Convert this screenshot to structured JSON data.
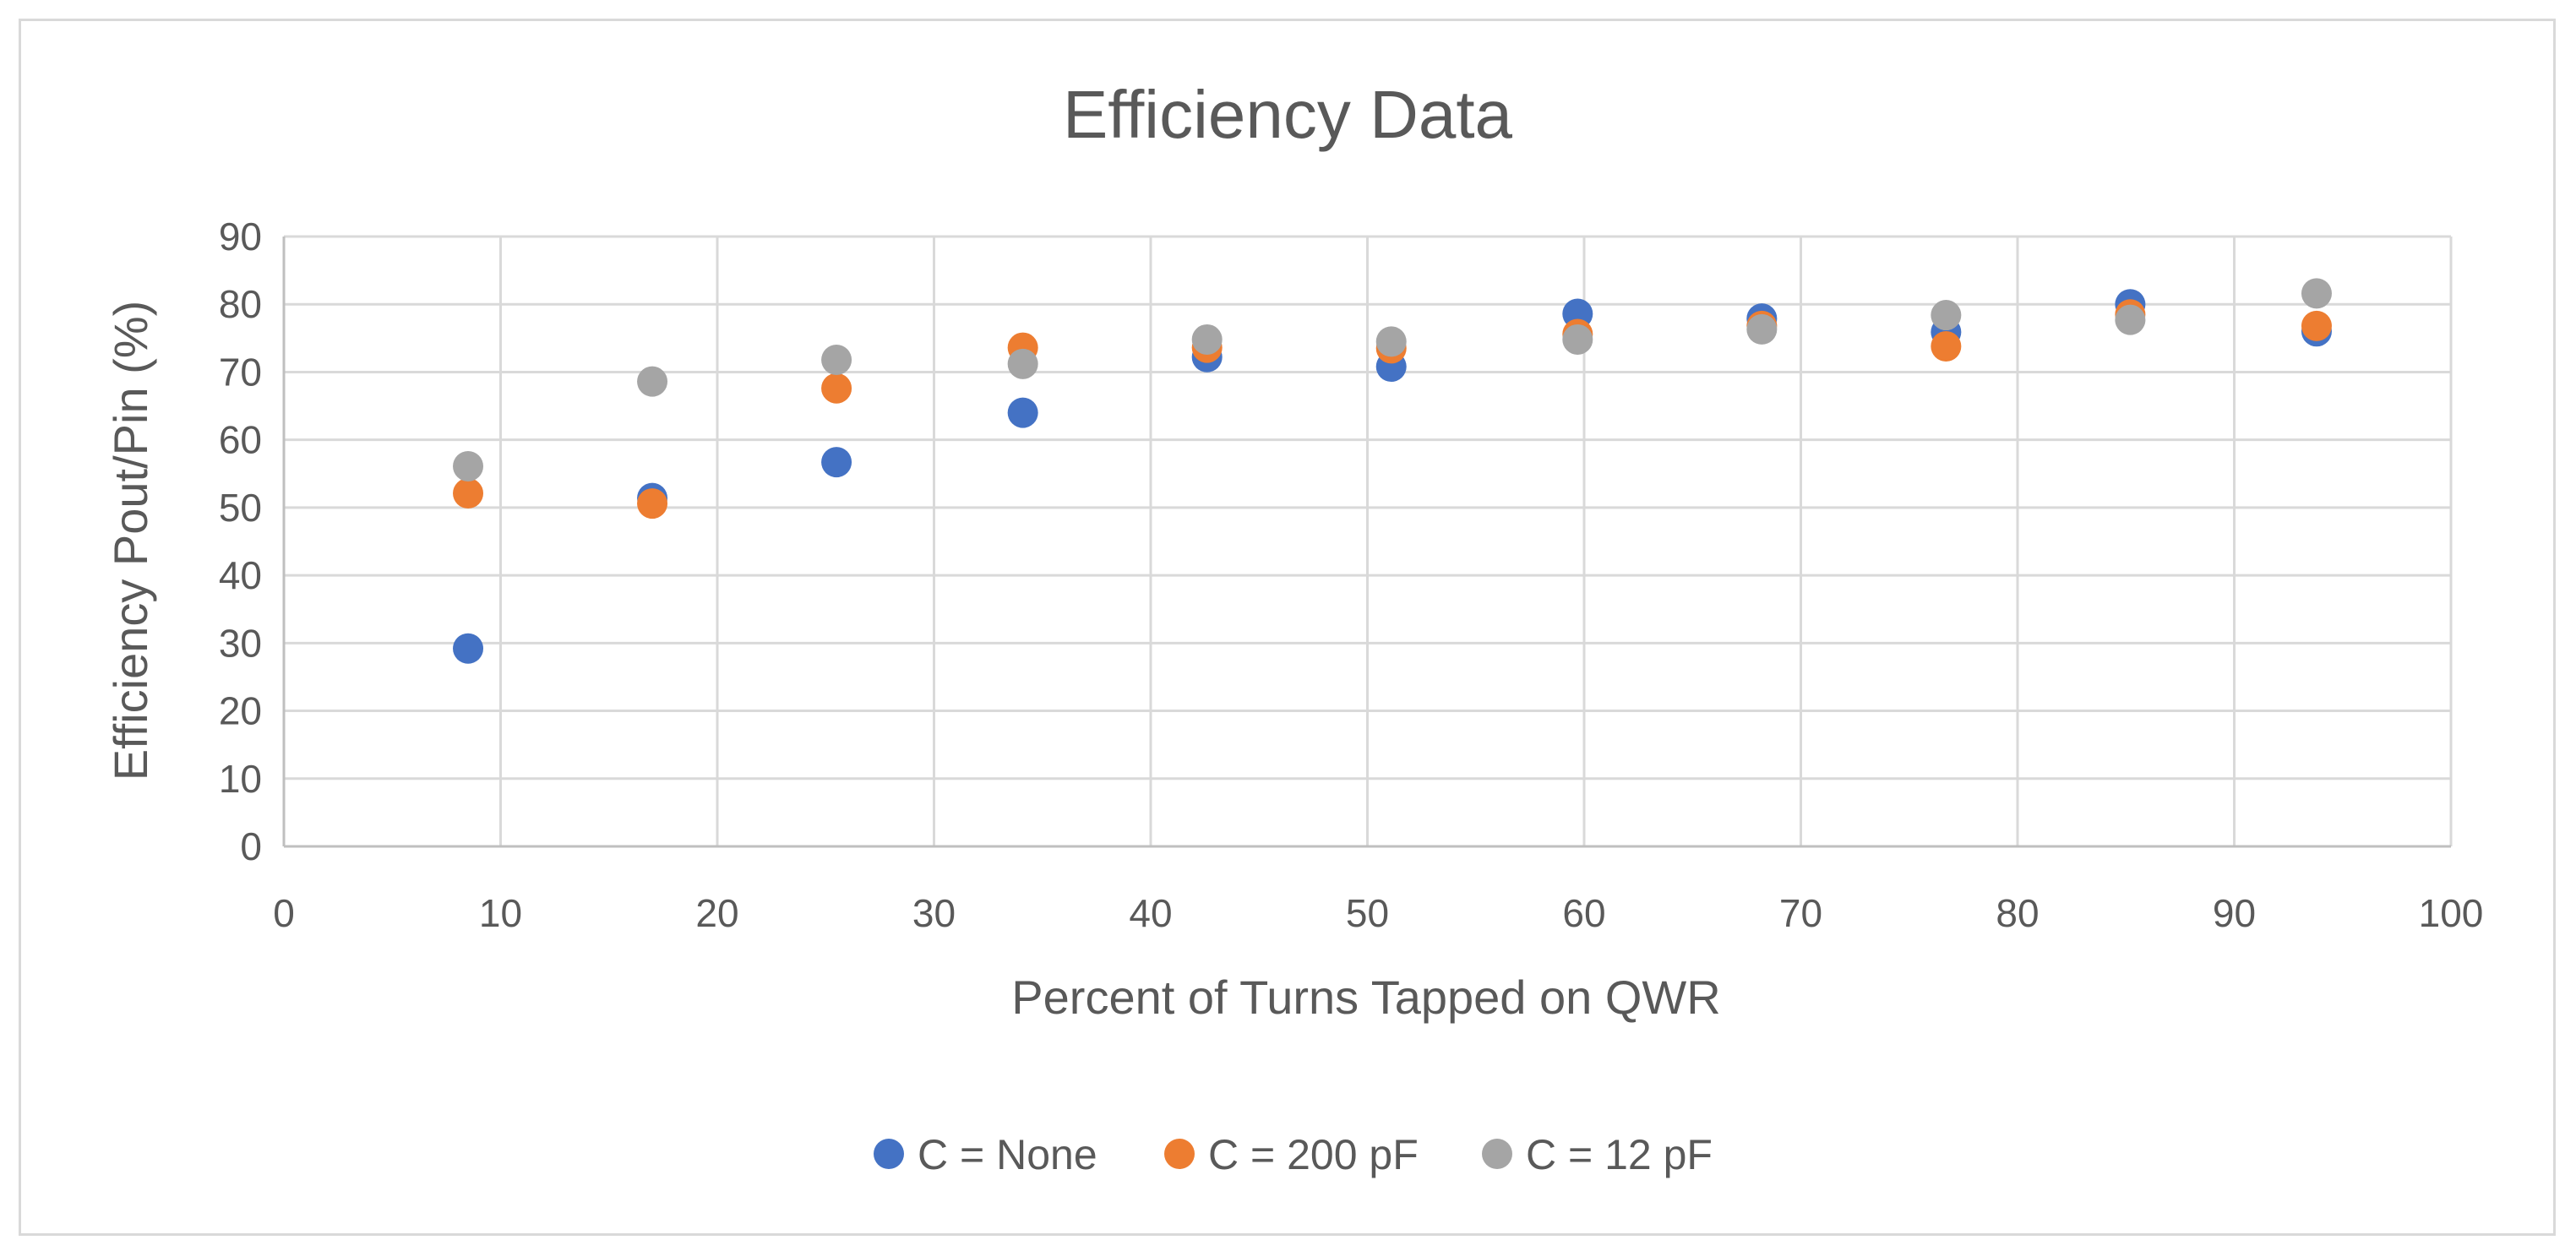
{
  "chart_data": {
    "type": "scatter",
    "title": "Efficiency Data",
    "xlabel": "Percent of Turns Tapped on QWR",
    "ylabel": "Efficiency Pout/Pin (%)",
    "xlim": [
      0,
      100
    ],
    "ylim": [
      0,
      90
    ],
    "x_ticks": [
      0,
      10,
      20,
      30,
      40,
      50,
      60,
      70,
      80,
      90,
      100
    ],
    "y_ticks": [
      0,
      10,
      20,
      30,
      40,
      50,
      60,
      70,
      80,
      90
    ],
    "grid": true,
    "legend_position": "bottom",
    "series": [
      {
        "name": "C = None",
        "color": "#4472c4",
        "x": [
          8.5,
          17,
          25.5,
          34.1,
          42.6,
          51.1,
          59.7,
          68.2,
          76.7,
          85.2,
          93.8
        ],
        "y": [
          29.2,
          51.4,
          56.7,
          64.0,
          72.2,
          70.8,
          78.6,
          77.9,
          75.9,
          80.0,
          76.0
        ]
      },
      {
        "name": "C = 200 pF",
        "color": "#ed7d31",
        "x": [
          8.5,
          17,
          25.5,
          34.1,
          42.6,
          51.1,
          59.7,
          68.2,
          76.7,
          85.2,
          93.8
        ],
        "y": [
          52.1,
          50.6,
          67.6,
          73.6,
          73.6,
          73.5,
          75.6,
          76.8,
          73.8,
          78.5,
          76.8
        ]
      },
      {
        "name": "C = 12 pF",
        "color": "#a5a5a5",
        "x": [
          8.5,
          17,
          25.5,
          34.1,
          42.6,
          51.1,
          59.7,
          68.2,
          76.7,
          85.2,
          93.8
        ],
        "y": [
          56.1,
          68.6,
          71.8,
          71.2,
          74.8,
          74.5,
          74.8,
          76.3,
          78.4,
          77.7,
          81.6
        ]
      }
    ]
  }
}
